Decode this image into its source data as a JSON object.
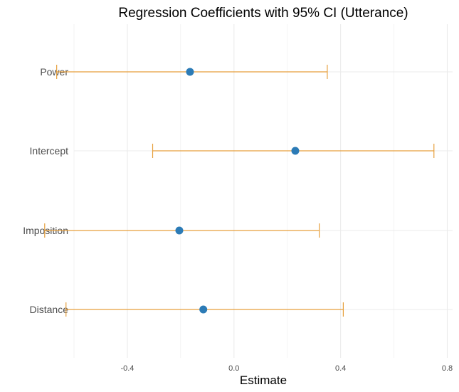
{
  "chart_data": {
    "type": "errorbar",
    "title": "Regression Coefficients with 95% CI (Utterance)",
    "xlabel": "Estimate",
    "ylabel": "",
    "xlim": [
      -0.6,
      0.82
    ],
    "x_ticks": [
      -0.4,
      0.0,
      0.4,
      0.8
    ],
    "x_tick_labels": [
      "-0.4",
      "0.0",
      "0.4",
      "0.8"
    ],
    "grid": true,
    "categories": [
      "Power",
      "Intercept",
      "Imposition",
      "Distance"
    ],
    "estimates": [
      -0.165,
      0.23,
      -0.205,
      -0.115
    ],
    "ci_lower": [
      -0.665,
      -0.305,
      -0.71,
      -0.63
    ],
    "ci_upper": [
      0.35,
      0.75,
      0.32,
      0.41
    ],
    "colors": {
      "point": "#2c7bb6",
      "errorbar": "#e69f3c",
      "grid": "#ebebeb"
    }
  }
}
